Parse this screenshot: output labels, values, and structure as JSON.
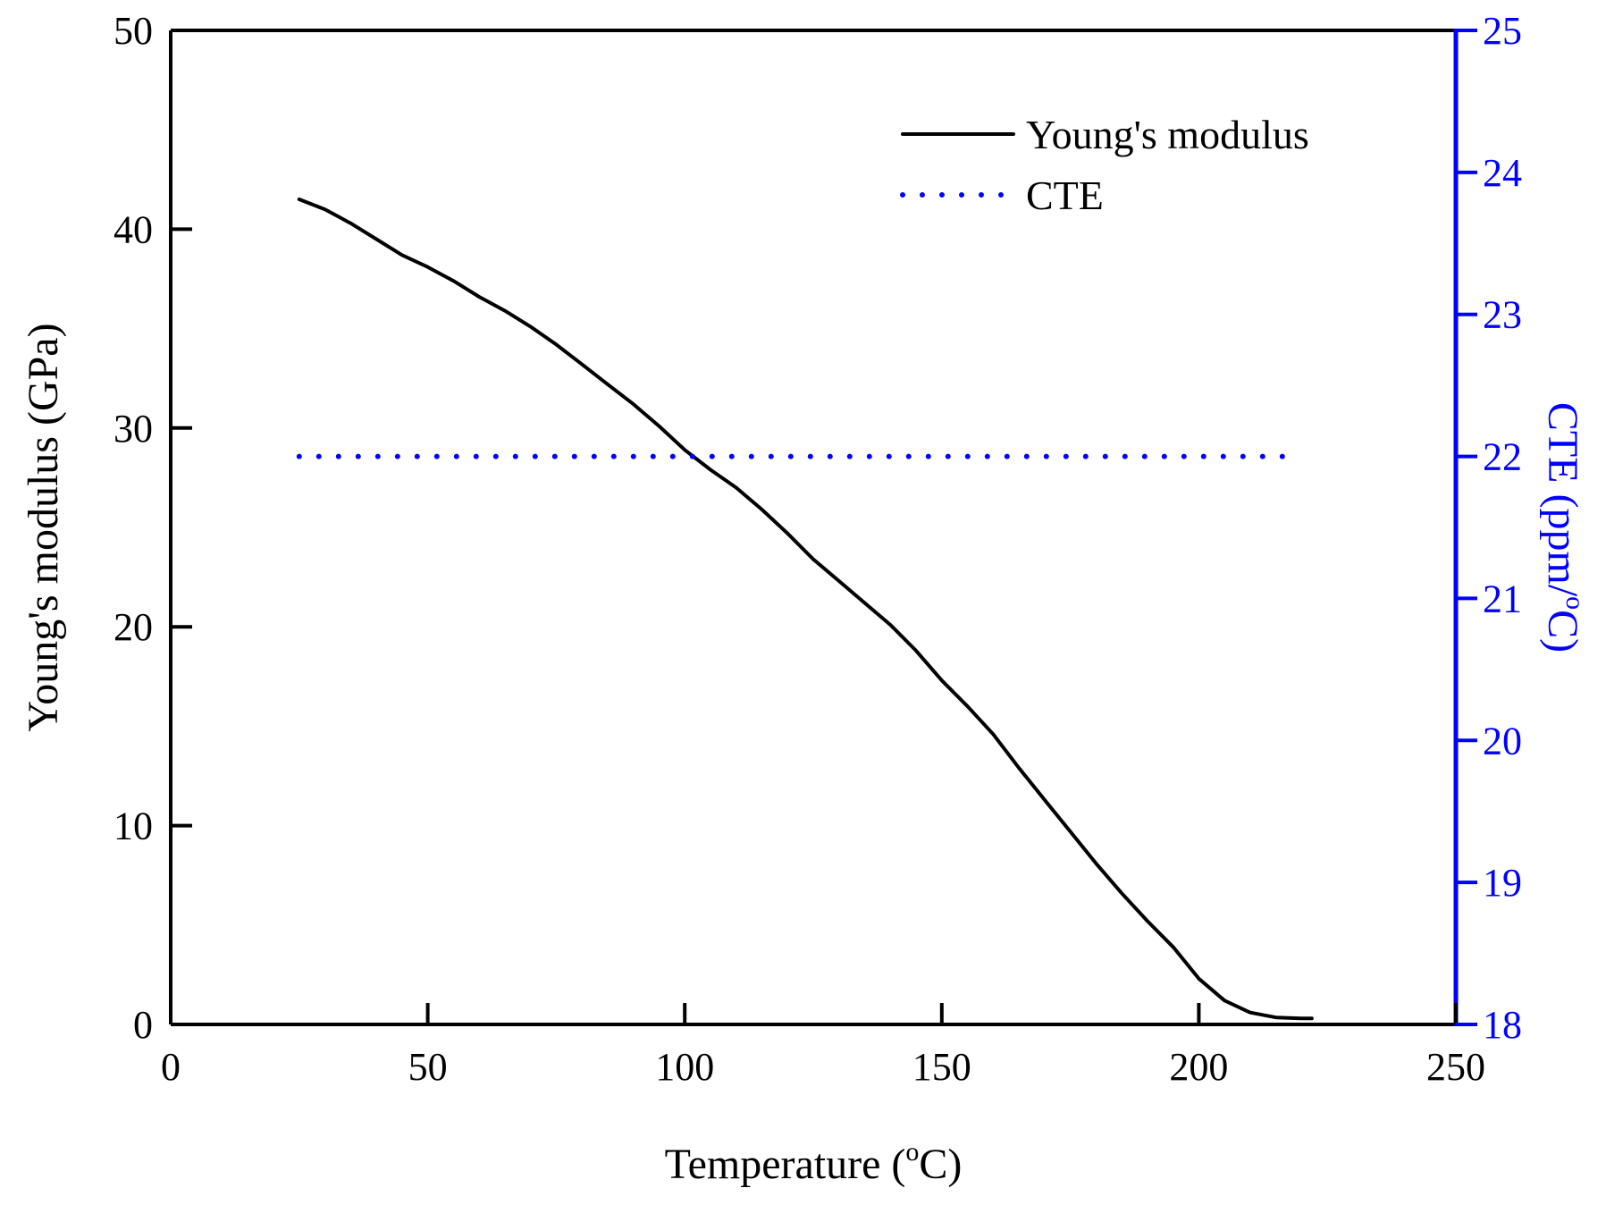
{
  "chart_data": {
    "type": "line",
    "x_axis": {
      "label_main": "Temperature (",
      "label_sup": "o",
      "label_end": "C)",
      "min": 0,
      "max": 250,
      "ticks": [
        0,
        50,
        100,
        150,
        200,
        250
      ]
    },
    "y_axis_left": {
      "label": "Young's modulus (GPa)",
      "min": 0,
      "max": 50,
      "ticks": [
        0,
        10,
        20,
        30,
        40,
        50
      ]
    },
    "y_axis_right": {
      "label_main": "CTE (ppm/",
      "label_sup": "o",
      "label_end": "C)",
      "min": 18,
      "max": 25,
      "ticks": [
        18,
        19,
        20,
        21,
        22,
        23,
        24,
        25
      ],
      "color": "#0000ff"
    },
    "legend": {
      "position": "top-right",
      "entries": [
        "Young's modulus",
        "CTE"
      ]
    },
    "series": [
      {
        "name": "Young's modulus",
        "axis": "left",
        "color": "#000000",
        "style": "solid",
        "x": [
          25,
          30,
          35,
          40,
          45,
          50,
          55,
          60,
          65,
          70,
          75,
          80,
          85,
          90,
          95,
          100,
          105,
          110,
          115,
          120,
          125,
          130,
          135,
          140,
          145,
          150,
          155,
          160,
          165,
          170,
          175,
          180,
          185,
          190,
          195,
          200,
          205,
          210,
          215,
          220,
          222
        ],
        "y": [
          41.5,
          41.0,
          40.3,
          39.5,
          38.7,
          38.1,
          37.4,
          36.6,
          35.9,
          35.1,
          34.2,
          33.2,
          32.2,
          31.2,
          30.1,
          28.9,
          27.9,
          27.0,
          25.9,
          24.7,
          23.4,
          22.3,
          21.2,
          20.1,
          18.8,
          17.3,
          16.0,
          14.6,
          12.9,
          11.3,
          9.7,
          8.1,
          6.6,
          5.2,
          3.9,
          2.3,
          1.2,
          0.6,
          0.35,
          0.3,
          0.3
        ]
      },
      {
        "name": "CTE",
        "axis": "right",
        "color": "#0000ff",
        "style": "dotted",
        "x": [
          25,
          220
        ],
        "y": [
          22,
          22
        ]
      }
    ]
  }
}
